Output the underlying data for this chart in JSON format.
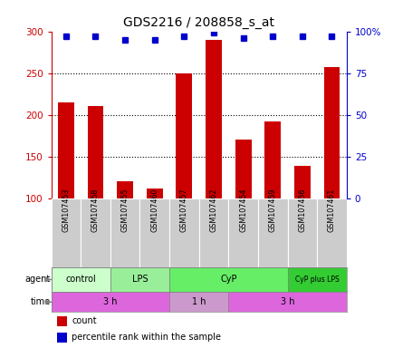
{
  "title": "GDS2216 / 208858_s_at",
  "samples": [
    "GSM107453",
    "GSM107458",
    "GSM107455",
    "GSM107460",
    "GSM107457",
    "GSM107462",
    "GSM107454",
    "GSM107459",
    "GSM107456",
    "GSM107461"
  ],
  "counts": [
    215,
    211,
    121,
    112,
    250,
    290,
    171,
    193,
    140,
    257
  ],
  "percentile_ranks": [
    97,
    97,
    95,
    95,
    97,
    99,
    96,
    97,
    97,
    97
  ],
  "ylim_left": [
    100,
    300
  ],
  "ylim_right": [
    0,
    100
  ],
  "yticks_left": [
    100,
    150,
    200,
    250,
    300
  ],
  "yticks_right": [
    0,
    25,
    50,
    75,
    100
  ],
  "bar_color": "#cc0000",
  "dot_color": "#0000cc",
  "background_color": "#ffffff",
  "sample_label_bg": "#cccccc",
  "agent_groups": [
    {
      "label": "control",
      "start": 0,
      "end": 2,
      "color": "#ccffcc"
    },
    {
      "label": "LPS",
      "start": 2,
      "end": 4,
      "color": "#99ee99"
    },
    {
      "label": "CyP",
      "start": 4,
      "end": 8,
      "color": "#66ee66"
    },
    {
      "label": "CyP plus LPS",
      "start": 8,
      "end": 10,
      "color": "#33cc33"
    }
  ],
  "time_groups": [
    {
      "label": "3 h",
      "start": 0,
      "end": 4,
      "color": "#dd66dd"
    },
    {
      "label": "1 h",
      "start": 4,
      "end": 6,
      "color": "#cc99cc"
    },
    {
      "label": "3 h",
      "start": 6,
      "end": 10,
      "color": "#dd66dd"
    }
  ],
  "legend_items": [
    {
      "label": "count",
      "color": "#cc0000"
    },
    {
      "label": "percentile rank within the sample",
      "color": "#0000cc"
    }
  ],
  "grid_lines": [
    150,
    200,
    250
  ]
}
